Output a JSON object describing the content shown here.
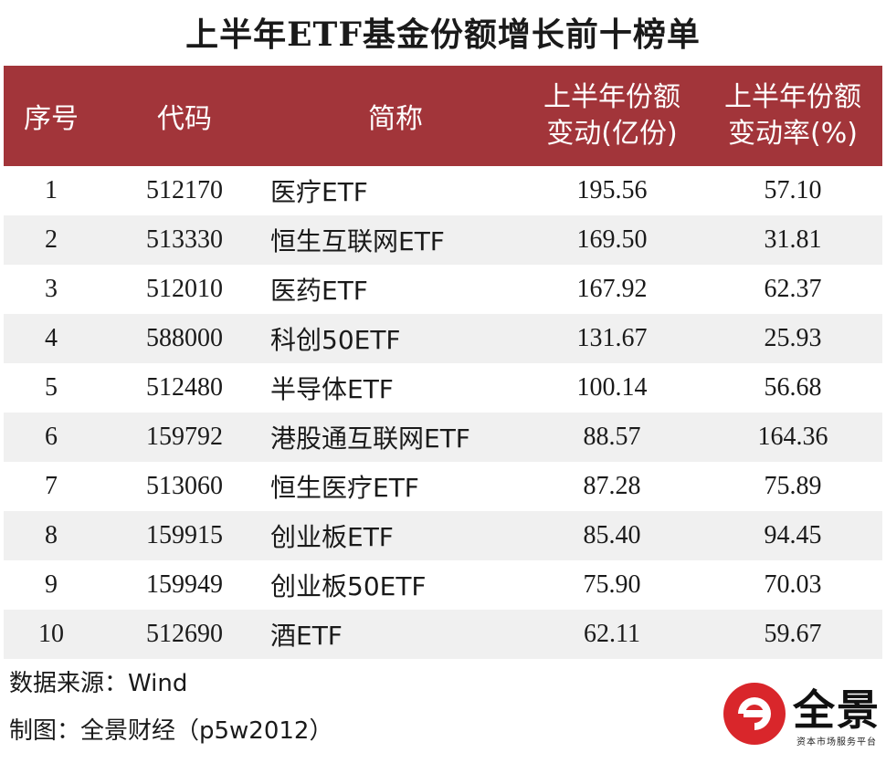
{
  "title": "上半年ETF基金份额增长前十榜单",
  "colors": {
    "header_bg": "#a2353a",
    "row_alt_bg": "#f0f0f0",
    "logo_red": "#d9262b"
  },
  "table": {
    "headers": {
      "rank": "序号",
      "code": "代码",
      "name": "简称",
      "change_line1": "上半年份额",
      "change_line2": "变动(亿份)",
      "rate_line1": "上半年份额",
      "rate_line2": "变动率(%)"
    },
    "rows": [
      {
        "rank": "1",
        "code": "512170",
        "name": "医疗ETF",
        "change": "195.56",
        "rate": "57.10"
      },
      {
        "rank": "2",
        "code": "513330",
        "name": "恒生互联网ETF",
        "change": "169.50",
        "rate": "31.81"
      },
      {
        "rank": "3",
        "code": "512010",
        "name": "医药ETF",
        "change": "167.92",
        "rate": "62.37"
      },
      {
        "rank": "4",
        "code": "588000",
        "name": "科创50ETF",
        "change": "131.67",
        "rate": "25.93"
      },
      {
        "rank": "5",
        "code": "512480",
        "name": "半导体ETF",
        "change": "100.14",
        "rate": "56.68"
      },
      {
        "rank": "6",
        "code": "159792",
        "name": "港股通互联网ETF",
        "change": "88.57",
        "rate": "164.36"
      },
      {
        "rank": "7",
        "code": "513060",
        "name": "恒生医疗ETF",
        "change": "87.28",
        "rate": "75.89"
      },
      {
        "rank": "8",
        "code": "159915",
        "name": "创业板ETF",
        "change": "85.40",
        "rate": "94.45"
      },
      {
        "rank": "9",
        "code": "159949",
        "name": "创业板50ETF",
        "change": "75.90",
        "rate": "70.03"
      },
      {
        "rank": "10",
        "code": "512690",
        "name": "酒ETF",
        "change": "62.11",
        "rate": "59.67"
      }
    ]
  },
  "footer": {
    "source": "数据来源：Wind",
    "credit": "制图：全景财经（p5w2012）"
  },
  "logo": {
    "name": "全景",
    "tagline": "资本市场服务平台",
    "icon": "quanjing-e-logo-icon"
  }
}
